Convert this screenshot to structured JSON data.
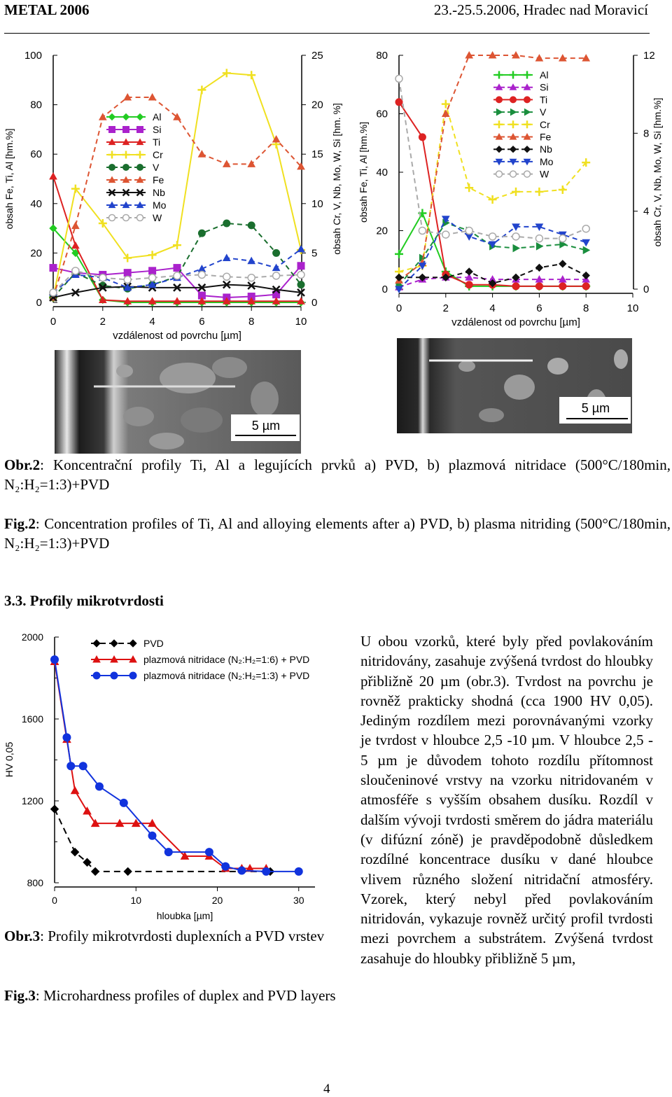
{
  "header": {
    "left": "METAL 2006",
    "right": "23.-25.5.2006, Hradec nad Moravicí"
  },
  "chart_data": [
    {
      "type": "line",
      "panel": "a",
      "xlabel": "vzdálenost od povrchu [µm]",
      "ylabel": "obsah Fe, Ti, Al [hm.%]",
      "y2label": "obsah Cr, V, Nb, Mo, W, Si [hm. %]",
      "xlim": [
        0,
        10
      ],
      "ylim": [
        0,
        100
      ],
      "y2lim": [
        0,
        25
      ],
      "xticks": [
        "0",
        "2",
        "4",
        "6",
        "8",
        "10"
      ],
      "yticks": [
        "0",
        "20",
        "40",
        "60",
        "80",
        "100"
      ],
      "y2ticks": [
        "0",
        "5",
        "10",
        "15",
        "20",
        "25"
      ],
      "legend_position": "left",
      "series": [
        {
          "name": "Al",
          "axis": "left",
          "color": "#22cc22",
          "marker": "diamond",
          "dash": false,
          "x": [
            0,
            0.9,
            2,
            3,
            4,
            5,
            6,
            7,
            8,
            9,
            10
          ],
          "y": [
            30,
            20,
            1,
            0,
            0,
            0,
            0,
            0,
            0,
            0,
            0
          ]
        },
        {
          "name": "Si",
          "axis": "right",
          "color": "#aa22cc",
          "marker": "square",
          "dash": false,
          "x": [
            0,
            0.9,
            2,
            3,
            4,
            5,
            6,
            7,
            8,
            9,
            10
          ],
          "y": [
            3.5,
            3,
            2.8,
            3,
            3.2,
            3.5,
            0.7,
            0.5,
            0.6,
            0.8,
            3.7
          ]
        },
        {
          "name": "Ti",
          "axis": "left",
          "color": "#dd2222",
          "marker": "triangle",
          "dash": false,
          "x": [
            0,
            0.9,
            2,
            3,
            4,
            5,
            6,
            7,
            8,
            9,
            10
          ],
          "y": [
            51,
            23,
            1,
            0.5,
            0.5,
            0.5,
            0.5,
            0.5,
            0.5,
            0.5,
            0.5
          ]
        },
        {
          "name": "Cr",
          "axis": "right",
          "color": "#f0e020",
          "marker": "plus",
          "dash": false,
          "x": [
            0,
            0.9,
            2,
            3,
            4,
            5,
            6,
            7,
            8,
            9,
            10
          ],
          "y": [
            0.5,
            11.5,
            8,
            4.5,
            4.8,
            5.8,
            21.5,
            23.2,
            23,
            16,
            5.3
          ]
        },
        {
          "name": "V",
          "axis": "right",
          "color": "#1a6e2e",
          "marker": "circle",
          "dash": true,
          "x": [
            0,
            0.9,
            2,
            3,
            4,
            5,
            6,
            7,
            8,
            9,
            10
          ],
          "y": [
            0.5,
            3,
            1.7,
            1.4,
            1.8,
            2.6,
            7,
            8,
            7.8,
            5,
            1.8
          ]
        },
        {
          "name": "Fe",
          "axis": "left",
          "color": "#dd5533",
          "marker": "triangle",
          "dash": true,
          "x": [
            0,
            0.9,
            2,
            3,
            4,
            5,
            6,
            7,
            8,
            9,
            10
          ],
          "y": [
            2,
            31,
            75,
            83,
            83,
            75,
            60,
            56,
            56,
            66,
            55
          ]
        },
        {
          "name": "Nb",
          "axis": "right",
          "color": "#111111",
          "marker": "x",
          "dash": false,
          "x": [
            0,
            0.9,
            2,
            3,
            4,
            5,
            6,
            7,
            8,
            9,
            10
          ],
          "y": [
            0.5,
            1,
            1.5,
            1.6,
            1.5,
            1.5,
            1.5,
            1.8,
            1.7,
            1.3,
            1
          ]
        },
        {
          "name": "Mo",
          "axis": "right",
          "color": "#2244cc",
          "marker": "triangle",
          "dash": true,
          "x": [
            0,
            0.9,
            2,
            3,
            4,
            5,
            6,
            7,
            8,
            9,
            10
          ],
          "y": [
            1,
            2.8,
            2.5,
            1.5,
            1.8,
            2.5,
            3.4,
            4.5,
            4.2,
            3.5,
            5.4
          ]
        },
        {
          "name": "W",
          "axis": "right",
          "color": "#aaaaaa",
          "marker": "circle-open",
          "dash": true,
          "x": [
            0,
            0.9,
            2,
            3,
            4,
            5,
            6,
            7,
            8,
            9,
            10
          ],
          "y": [
            1,
            3.2,
            2.5,
            2.3,
            2.5,
            2.7,
            2.8,
            2.6,
            2.5,
            2.7,
            2.8
          ]
        }
      ]
    },
    {
      "type": "line",
      "panel": "b",
      "xlabel": "vzdálenost od povrchu [µm]",
      "ylabel": "obsah Fe, Ti, Al [hm.%]",
      "y2label": "obsah Cr, V, Nb, Mo, W, Si [hm.%]",
      "xlim": [
        0,
        10
      ],
      "ylim": [
        0,
        80
      ],
      "y2lim": [
        0,
        12
      ],
      "xticks": [
        "0",
        "2",
        "4",
        "6",
        "8",
        "10"
      ],
      "yticks": [
        "0",
        "20",
        "40",
        "60",
        "80"
      ],
      "y2ticks": [
        "0",
        "4",
        "8",
        "12"
      ],
      "legend_position": "top-right",
      "series": [
        {
          "name": "Al",
          "axis": "left",
          "color": "#22cc22",
          "marker": "plus",
          "dash": false,
          "x": [
            0,
            1,
            2,
            3,
            4,
            5,
            6,
            7,
            8
          ],
          "y": [
            12,
            26,
            6,
            1,
            1,
            1,
            1,
            1,
            1
          ]
        },
        {
          "name": "Si",
          "axis": "right",
          "color": "#aa22cc",
          "marker": "triangle",
          "dash": true,
          "x": [
            0,
            1,
            2,
            3,
            4,
            5,
            6,
            7,
            8
          ],
          "y": [
            0.1,
            0.5,
            0.6,
            0.6,
            0.5,
            0.5,
            0.5,
            0.5,
            0.5
          ]
        },
        {
          "name": "Ti",
          "axis": "left",
          "color": "#dd2222",
          "marker": "circle",
          "dash": false,
          "x": [
            0,
            1,
            2,
            3,
            4,
            5,
            6,
            7,
            8
          ],
          "y": [
            64,
            52,
            5,
            1.5,
            1.5,
            1,
            1,
            1,
            1
          ]
        },
        {
          "name": "V",
          "axis": "right",
          "color": "#1a8e3e",
          "marker": "triangle-right",
          "dash": true,
          "x": [
            0,
            1,
            2,
            3,
            4,
            5,
            6,
            7,
            8
          ],
          "y": [
            0.2,
            1.6,
            3.4,
            3,
            2.2,
            2.1,
            2.2,
            2.3,
            2
          ]
        },
        {
          "name": "Cr",
          "axis": "right",
          "color": "#f0e020",
          "marker": "plus",
          "dash": true,
          "x": [
            0,
            1,
            2,
            3,
            4,
            5,
            6,
            7,
            8
          ],
          "y": [
            0.9,
            1.2,
            9.5,
            5.2,
            4.6,
            5,
            5,
            5.1,
            6.5
          ]
        },
        {
          "name": "Fe",
          "axis": "left",
          "color": "#dd5533",
          "marker": "triangle",
          "dash": true,
          "x": [
            0,
            1,
            2,
            3,
            4,
            5,
            6,
            7,
            8
          ],
          "y": [
            3,
            9,
            60,
            80,
            80,
            80,
            79,
            79,
            79
          ]
        },
        {
          "name": "Nb",
          "axis": "right",
          "color": "#111111",
          "marker": "diamond",
          "dash": true,
          "x": [
            0,
            1,
            2,
            3,
            4,
            5,
            6,
            7,
            8
          ],
          "y": [
            0.6,
            0.6,
            0.6,
            0.9,
            0.3,
            0.6,
            1.1,
            1.3,
            0.7
          ]
        },
        {
          "name": "Mo",
          "axis": "right",
          "color": "#2244cc",
          "marker": "triangle-down",
          "dash": true,
          "x": [
            0,
            1,
            2,
            3,
            4,
            5,
            6,
            7,
            8
          ],
          "y": [
            0,
            1.2,
            3.6,
            2.7,
            2.3,
            3.2,
            3.2,
            2.8,
            2.4
          ]
        },
        {
          "name": "W",
          "axis": "right",
          "color": "#aaaaaa",
          "marker": "circle-open",
          "dash": true,
          "x": [
            0,
            1,
            2,
            3,
            4,
            5,
            6,
            7,
            8
          ],
          "y": [
            10.8,
            3,
            2.8,
            3,
            2.7,
            2.7,
            2.6,
            2.6,
            3.1
          ]
        }
      ]
    },
    {
      "type": "line",
      "panel": "hv",
      "xlabel": "hloubka [µm]",
      "ylabel": "HV 0,05",
      "xlim": [
        0,
        32
      ],
      "ylim": [
        800,
        2000
      ],
      "xticks": [
        "0",
        "10",
        "20",
        "30"
      ],
      "yticks": [
        "800",
        "1200",
        "1600",
        "2000"
      ],
      "legend_position": "top",
      "series": [
        {
          "name": "PVD",
          "color": "#000000",
          "marker": "diamond",
          "dash": true,
          "x": [
            0,
            2.5,
            4,
            5,
            9,
            26.5
          ],
          "y": [
            1160,
            950,
            900,
            855,
            855,
            855
          ]
        },
        {
          "name": "plazmová nitridace (N₂:H₂=1:6) + PVD",
          "color": "#dd1111",
          "marker": "triangle",
          "dash": false,
          "x": [
            0,
            1.5,
            2.5,
            4,
            5,
            8,
            10,
            12,
            16,
            19,
            21,
            23,
            24,
            26
          ],
          "y": [
            1880,
            1500,
            1250,
            1150,
            1090,
            1090,
            1090,
            1090,
            930,
            930,
            870,
            870,
            870,
            870
          ]
        },
        {
          "name": "plazmová nitridace (N₂:H₂=1:3) + PVD",
          "color": "#1133dd",
          "marker": "circle",
          "dash": false,
          "x": [
            0,
            1.5,
            2,
            3.5,
            5.5,
            8.5,
            12,
            14,
            19,
            21,
            23,
            26,
            30
          ],
          "y": [
            1890,
            1510,
            1370,
            1370,
            1270,
            1190,
            1030,
            950,
            950,
            880,
            860,
            855,
            855
          ]
        }
      ]
    }
  ],
  "sem": [
    {
      "scale": "5 µm"
    },
    {
      "scale": "5 µm"
    }
  ],
  "caption2_cz": {
    "label": "Obr.2",
    "text": ": Koncentrační profily Ti, Al a legujících prvků a) PVD, b) plazmová nitridace (500°C/180min, N₂:H₂=1:3)+PVD"
  },
  "caption2_en": {
    "label": "Fig.2",
    "text": ": Concentration profiles of Ti, Al and alloying elements after a) PVD, b) plasma nitriding (500°C/180min, N₂:H₂=1:3)+PVD"
  },
  "section_title": "3.3. Profily mikrotvrdosti",
  "caption3_cz": {
    "label": "Obr.3",
    "text": ": Profily mikrotvrdosti duplexních a PVD vrstev"
  },
  "caption3_en": {
    "label": "Fig.3",
    "text": ": Microhardness profiles of duplex and PVD layers"
  },
  "body_text": "U obou vzorků, které byly před povlakováním nitridovány, zasahuje zvýšená tvrdost do hloubky přibližně 20 µm (obr.3). Tvrdost na povrchu je rovněž prakticky shodná (cca 1900 HV 0,05). Jediným rozdílem mezi porovnávanými vzorky je tvrdost v hloubce 2,5 -10 µm. V hloubce 2,5 - 5 µm je důvodem tohoto rozdílu přítomnost sloučeninové vrstvy na vzorku nitridovaném v atmosféře s vyšším obsahem dusíku. Rozdíl v dalším vývoji tvrdosti směrem do jádra materiálu (v difúzní zóně) je pravděpodobně důsledkem rozdílné koncentrace dusíku v dané hloubce vlivem různého složení nitridační atmosféry. Vzorek, který nebyl před povlakováním nitridován, vykazuje rovněž určitý profil tvrdosti mezi povrchem a substrátem. Zvýšená tvrdost zasahuje do hloubky přibližně 5 µm,",
  "page_number": "4"
}
